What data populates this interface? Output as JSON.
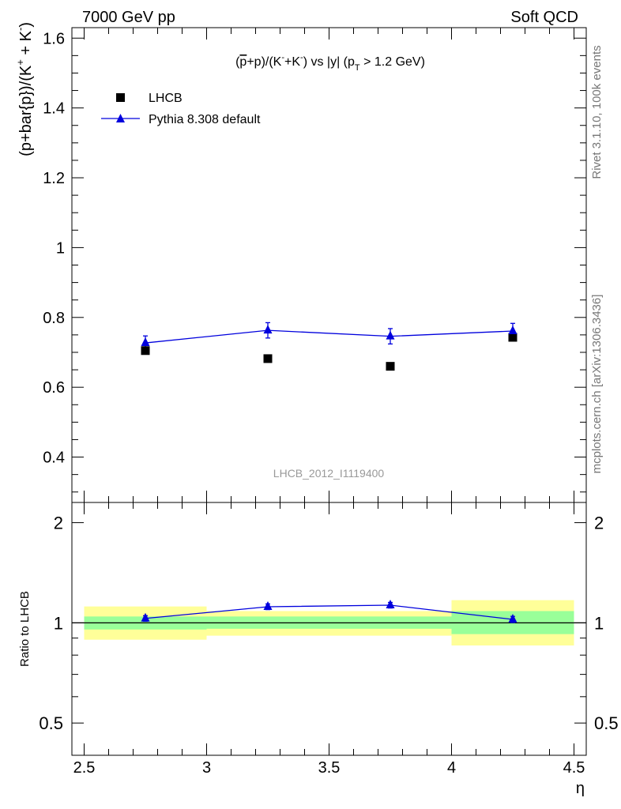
{
  "header": {
    "left": "7000 GeV pp",
    "right": "Soft QCD"
  },
  "side_labels": {
    "rivet": "Rivet 3.1.10,  100k events",
    "mcplots": "mcplots.cern.ch [arXiv:1306.3436]"
  },
  "watermark": "LHCB_2012_I1119400",
  "colors": {
    "data": "#000000",
    "mc": "#0000dd",
    "band_inner": "#99ff99",
    "band_outer": "#ffff99"
  },
  "chart_data": [
    {
      "type": "scatter",
      "panel": "main",
      "title_parts": {
        "pre": "(",
        "p_bar": "p",
        "mid1": "+p)/(K",
        "sup1": "-",
        "mid2": "+K",
        "sup2": "-",
        "mid3": ") vs |y| (p",
        "sub": "T",
        "post": " > 1.2 GeV)"
      },
      "ylabel_parts": {
        "pre": "(p+bar{p})/(K",
        "sup1": "+",
        "mid": " + K",
        "sup2": "-",
        "post": ")"
      },
      "xlim": [
        2.45,
        4.55
      ],
      "ylim": [
        0.27,
        1.63
      ],
      "yticks": [
        0.4,
        0.6,
        0.8,
        1.0,
        1.2,
        1.4,
        1.6
      ],
      "ytick_labels": [
        "0.4",
        "0.6",
        "0.8",
        "1",
        "1.2",
        "1.4",
        "1.6"
      ],
      "legend_position": "top-left",
      "series": [
        {
          "name": "LHCB",
          "style": "markers",
          "marker": "square",
          "x": [
            2.75,
            3.25,
            3.75,
            4.25
          ],
          "y": [
            0.705,
            0.682,
            0.66,
            0.743
          ]
        },
        {
          "name": "Pythia 8.308 default",
          "style": "line-markers",
          "marker": "triangle",
          "x": [
            2.75,
            3.25,
            3.75,
            4.25
          ],
          "y": [
            0.727,
            0.763,
            0.746,
            0.761
          ],
          "yerr": [
            0.02,
            0.022,
            0.022,
            0.022
          ]
        }
      ]
    },
    {
      "type": "scatter",
      "panel": "ratio",
      "ylabel": "Ratio to LHCB",
      "xlabel": "η",
      "xlim": [
        2.45,
        4.55
      ],
      "ylim": [
        0.4,
        2.3
      ],
      "log_y": true,
      "xticks": [
        2.5,
        3.0,
        3.5,
        4.0,
        4.5
      ],
      "xtick_labels": [
        "2.5",
        "3",
        "3.5",
        "4",
        "4.5"
      ],
      "yticks": [
        0.5,
        1.0,
        2.0
      ],
      "ytick_labels": [
        "0.5",
        "1",
        "2"
      ],
      "reference_line": 1.0,
      "bands": [
        {
          "x0": 2.5,
          "x1": 3.0,
          "inner": [
            0.955,
            1.045
          ],
          "outer": [
            0.89,
            1.12
          ]
        },
        {
          "x0": 3.0,
          "x1": 3.5,
          "inner": [
            0.96,
            1.045
          ],
          "outer": [
            0.915,
            1.085
          ]
        },
        {
          "x0": 3.5,
          "x1": 4.0,
          "inner": [
            0.96,
            1.045
          ],
          "outer": [
            0.915,
            1.085
          ]
        },
        {
          "x0": 4.0,
          "x1": 4.5,
          "inner": [
            0.925,
            1.085
          ],
          "outer": [
            0.855,
            1.17
          ]
        }
      ],
      "series": [
        {
          "name": "Pythia 8.308 default",
          "style": "line-markers",
          "marker": "triangle",
          "x": [
            2.75,
            3.25,
            3.75,
            4.25
          ],
          "y": [
            1.031,
            1.118,
            1.13,
            1.024
          ],
          "yerr": [
            0.02,
            0.022,
            0.022,
            0.022
          ]
        }
      ]
    }
  ]
}
